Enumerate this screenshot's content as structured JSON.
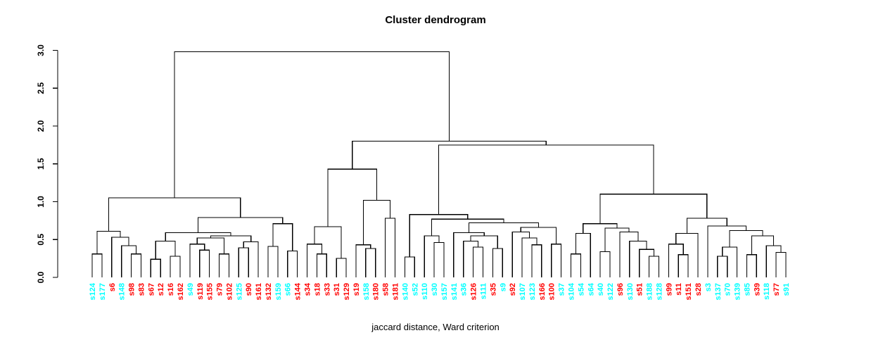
{
  "chart_data": {
    "type": "dendrogram",
    "title": "Cluster dendrogram",
    "xlabel": "jaccard distance, Ward criterion",
    "yaxis": {
      "ticks": [
        "0.0",
        "0.5",
        "1.0",
        "1.5",
        "2.0",
        "2.5",
        "3.0"
      ],
      "range": [
        0,
        3
      ]
    },
    "colors": {
      "cluster_cyan": "#00FFFF",
      "cluster_red": "#FF0000",
      "line": "#000000"
    },
    "leaves": [
      {
        "label": "s124",
        "color": "#00FFFF"
      },
      {
        "label": "s177",
        "color": "#00FFFF"
      },
      {
        "label": "s6",
        "color": "#FF0000"
      },
      {
        "label": "s148",
        "color": "#00FFFF"
      },
      {
        "label": "s98",
        "color": "#FF0000"
      },
      {
        "label": "s83",
        "color": "#FF0000"
      },
      {
        "label": "s67",
        "color": "#FF0000"
      },
      {
        "label": "s12",
        "color": "#FF0000"
      },
      {
        "label": "s16",
        "color": "#FF0000"
      },
      {
        "label": "s162",
        "color": "#FF0000"
      },
      {
        "label": "s49",
        "color": "#00FFFF"
      },
      {
        "label": "s119",
        "color": "#FF0000"
      },
      {
        "label": "s155",
        "color": "#FF0000"
      },
      {
        "label": "s79",
        "color": "#FF0000"
      },
      {
        "label": "s102",
        "color": "#FF0000"
      },
      {
        "label": "s125",
        "color": "#00FFFF"
      },
      {
        "label": "s90",
        "color": "#FF0000"
      },
      {
        "label": "s161",
        "color": "#FF0000"
      },
      {
        "label": "s132",
        "color": "#FF0000"
      },
      {
        "label": "s159",
        "color": "#00FFFF"
      },
      {
        "label": "s66",
        "color": "#00FFFF"
      },
      {
        "label": "s144",
        "color": "#FF0000"
      },
      {
        "label": "s34",
        "color": "#FF0000"
      },
      {
        "label": "s18",
        "color": "#FF0000"
      },
      {
        "label": "s33",
        "color": "#FF0000"
      },
      {
        "label": "s31",
        "color": "#FF0000"
      },
      {
        "label": "s129",
        "color": "#FF0000"
      },
      {
        "label": "s19",
        "color": "#FF0000"
      },
      {
        "label": "s158",
        "color": "#00FFFF"
      },
      {
        "label": "s180",
        "color": "#FF0000"
      },
      {
        "label": "s58",
        "color": "#FF0000"
      },
      {
        "label": "s181",
        "color": "#FF0000"
      },
      {
        "label": "s140",
        "color": "#00FFFF"
      },
      {
        "label": "s52",
        "color": "#00FFFF"
      },
      {
        "label": "s110",
        "color": "#00FFFF"
      },
      {
        "label": "s30",
        "color": "#00FFFF"
      },
      {
        "label": "s157",
        "color": "#00FFFF"
      },
      {
        "label": "s141",
        "color": "#00FFFF"
      },
      {
        "label": "s36",
        "color": "#00FFFF"
      },
      {
        "label": "s126",
        "color": "#FF0000"
      },
      {
        "label": "s111",
        "color": "#00FFFF"
      },
      {
        "label": "s35",
        "color": "#FF0000"
      },
      {
        "label": "s9",
        "color": "#00FFFF"
      },
      {
        "label": "s92",
        "color": "#FF0000"
      },
      {
        "label": "s107",
        "color": "#00FFFF"
      },
      {
        "label": "s123",
        "color": "#00FFFF"
      },
      {
        "label": "s166",
        "color": "#FF0000"
      },
      {
        "label": "s100",
        "color": "#FF0000"
      },
      {
        "label": "s37",
        "color": "#00FFFF"
      },
      {
        "label": "s104",
        "color": "#00FFFF"
      },
      {
        "label": "s54",
        "color": "#00FFFF"
      },
      {
        "label": "s64",
        "color": "#00FFFF"
      },
      {
        "label": "s40",
        "color": "#00FFFF"
      },
      {
        "label": "s122",
        "color": "#00FFFF"
      },
      {
        "label": "s96",
        "color": "#FF0000"
      },
      {
        "label": "s130",
        "color": "#00FFFF"
      },
      {
        "label": "s51",
        "color": "#FF0000"
      },
      {
        "label": "s188",
        "color": "#00FFFF"
      },
      {
        "label": "s128",
        "color": "#00FFFF"
      },
      {
        "label": "s99",
        "color": "#FF0000"
      },
      {
        "label": "s11",
        "color": "#FF0000"
      },
      {
        "label": "s151",
        "color": "#FF0000"
      },
      {
        "label": "s28",
        "color": "#FF0000"
      },
      {
        "label": "s3",
        "color": "#00FFFF"
      },
      {
        "label": "s137",
        "color": "#00FFFF"
      },
      {
        "label": "s70",
        "color": "#00FFFF"
      },
      {
        "label": "s139",
        "color": "#00FFFF"
      },
      {
        "label": "s85",
        "color": "#00FFFF"
      },
      {
        "label": "s39",
        "color": "#FF0000"
      },
      {
        "label": "s118",
        "color": "#00FFFF"
      },
      {
        "label": "s77",
        "color": "#FF0000"
      },
      {
        "label": "s91",
        "color": "#00FFFF"
      }
    ],
    "tree": {
      "h": 2.98,
      "c": [
        {
          "h": 1.05,
          "c": [
            {
              "h": 0.61,
              "c": [
                {
                  "h": 0.31,
                  "c": [
                    "s124",
                    "s177"
                  ]
                },
                {
                  "h": 0.53,
                  "c": [
                    "s6",
                    {
                      "h": 0.42,
                      "c": [
                        "s148",
                        {
                          "h": 0.31,
                          "c": [
                            "s98",
                            "s83"
                          ]
                        }
                      ]
                    }
                  ]
                }
              ]
            },
            {
              "h": 0.79,
              "c": [
                {
                  "h": 0.59,
                  "c": [
                    {
                      "h": 0.48,
                      "c": [
                        {
                          "h": 0.24,
                          "c": [
                            "s67",
                            "s12"
                          ]
                        },
                        {
                          "h": 0.28,
                          "c": [
                            "s16",
                            "s162"
                          ]
                        }
                      ]
                    },
                    {
                      "h": 0.55,
                      "c": [
                        {
                          "h": 0.52,
                          "c": [
                            {
                              "h": 0.44,
                              "c": [
                                "s49",
                                {
                                  "h": 0.36,
                                  "c": [
                                    "s119",
                                    "s155"
                                  ]
                                }
                              ]
                            },
                            {
                              "h": 0.31,
                              "c": [
                                "s79",
                                "s102"
                              ]
                            }
                          ]
                        },
                        {
                          "h": 0.47,
                          "c": [
                            {
                              "h": 0.39,
                              "c": [
                                "s125",
                                "s90"
                              ]
                            },
                            "s161"
                          ]
                        }
                      ]
                    }
                  ]
                },
                {
                  "h": 0.71,
                  "c": [
                    {
                      "h": 0.41,
                      "c": [
                        "s132",
                        "s159"
                      ]
                    },
                    {
                      "h": 0.35,
                      "c": [
                        "s66",
                        "s144"
                      ]
                    }
                  ]
                }
              ]
            }
          ]
        },
        {
          "h": 1.8,
          "c": [
            {
              "h": 1.43,
              "c": [
                {
                  "h": 0.67,
                  "c": [
                    {
                      "h": 0.44,
                      "c": [
                        "s34",
                        {
                          "h": 0.31,
                          "c": [
                            "s18",
                            "s33"
                          ]
                        }
                      ]
                    },
                    {
                      "h": 0.25,
                      "c": [
                        "s31",
                        "s129"
                      ]
                    }
                  ]
                },
                {
                  "h": 1.02,
                  "c": [
                    {
                      "h": 0.43,
                      "c": [
                        "s19",
                        {
                          "h": 0.38,
                          "c": [
                            "s158",
                            "s180"
                          ]
                        }
                      ]
                    },
                    {
                      "h": 0.78,
                      "c": [
                        "s58",
                        "s181"
                      ]
                    }
                  ]
                }
              ]
            },
            {
              "h": 1.75,
              "c": [
                {
                  "h": 0.83,
                  "c": [
                    {
                      "h": 0.27,
                      "c": [
                        "s140",
                        "s52"
                      ]
                    },
                    {
                      "h": 0.77,
                      "c": [
                        {
                          "h": 0.55,
                          "c": [
                            "s110",
                            {
                              "h": 0.46,
                              "c": [
                                "s30",
                                "s157"
                              ]
                            }
                          ]
                        },
                        {
                          "h": 0.72,
                          "c": [
                            {
                              "h": 0.59,
                              "c": [
                                "s141",
                                {
                                  "h": 0.55,
                                  "c": [
                                    {
                                      "h": 0.48,
                                      "c": [
                                        "s36",
                                        {
                                          "h": 0.4,
                                          "c": [
                                            "s126",
                                            "s111"
                                          ]
                                        }
                                      ]
                                    },
                                    {
                                      "h": 0.38,
                                      "c": [
                                        "s35",
                                        "s9"
                                      ]
                                    }
                                  ]
                                }
                              ]
                            },
                            {
                              "h": 0.66,
                              "c": [
                                {
                                  "h": 0.6,
                                  "c": [
                                    "s92",
                                    {
                                      "h": 0.52,
                                      "c": [
                                        "s107",
                                        {
                                          "h": 0.43,
                                          "c": [
                                            "s123",
                                            "s166"
                                          ]
                                        }
                                      ]
                                    }
                                  ]
                                },
                                {
                                  "h": 0.44,
                                  "c": [
                                    "s100",
                                    "s37"
                                  ]
                                }
                              ]
                            }
                          ]
                        }
                      ]
                    }
                  ]
                },
                {
                  "h": 1.1,
                  "c": [
                    {
                      "h": 0.71,
                      "c": [
                        {
                          "h": 0.58,
                          "c": [
                            {
                              "h": 0.31,
                              "c": [
                                "s104",
                                "s54"
                              ]
                            },
                            "s64"
                          ]
                        },
                        {
                          "h": 0.65,
                          "c": [
                            {
                              "h": 0.34,
                              "c": [
                                "s40",
                                "s122"
                              ]
                            },
                            {
                              "h": 0.6,
                              "c": [
                                "s96",
                                {
                                  "h": 0.48,
                                  "c": [
                                    "s130",
                                    {
                                      "h": 0.37,
                                      "c": [
                                        "s51",
                                        {
                                          "h": 0.28,
                                          "c": [
                                            "s188",
                                            "s128"
                                          ]
                                        }
                                      ]
                                    }
                                  ]
                                }
                              ]
                            }
                          ]
                        }
                      ]
                    },
                    {
                      "h": 0.78,
                      "c": [
                        {
                          "h": 0.58,
                          "c": [
                            {
                              "h": 0.44,
                              "c": [
                                "s99",
                                {
                                  "h": 0.3,
                                  "c": [
                                    "s11",
                                    "s151"
                                  ]
                                }
                              ]
                            },
                            "s28"
                          ]
                        },
                        {
                          "h": 0.68,
                          "c": [
                            "s3",
                            {
                              "h": 0.62,
                              "c": [
                                {
                                  "h": 0.4,
                                  "c": [
                                    {
                                      "h": 0.28,
                                      "c": [
                                        "s137",
                                        "s70"
                                      ]
                                    },
                                    "s139"
                                  ]
                                },
                                {
                                  "h": 0.55,
                                  "c": [
                                    {
                                      "h": 0.3,
                                      "c": [
                                        "s85",
                                        "s39"
                                      ]
                                    },
                                    {
                                      "h": 0.42,
                                      "c": [
                                        "s118",
                                        {
                                          "h": 0.33,
                                          "c": [
                                            "s77",
                                            "s91"
                                          ]
                                        }
                                      ]
                                    }
                                  ]
                                }
                              ]
                            }
                          ]
                        }
                      ]
                    }
                  ]
                }
              ]
            }
          ]
        }
      ]
    }
  }
}
